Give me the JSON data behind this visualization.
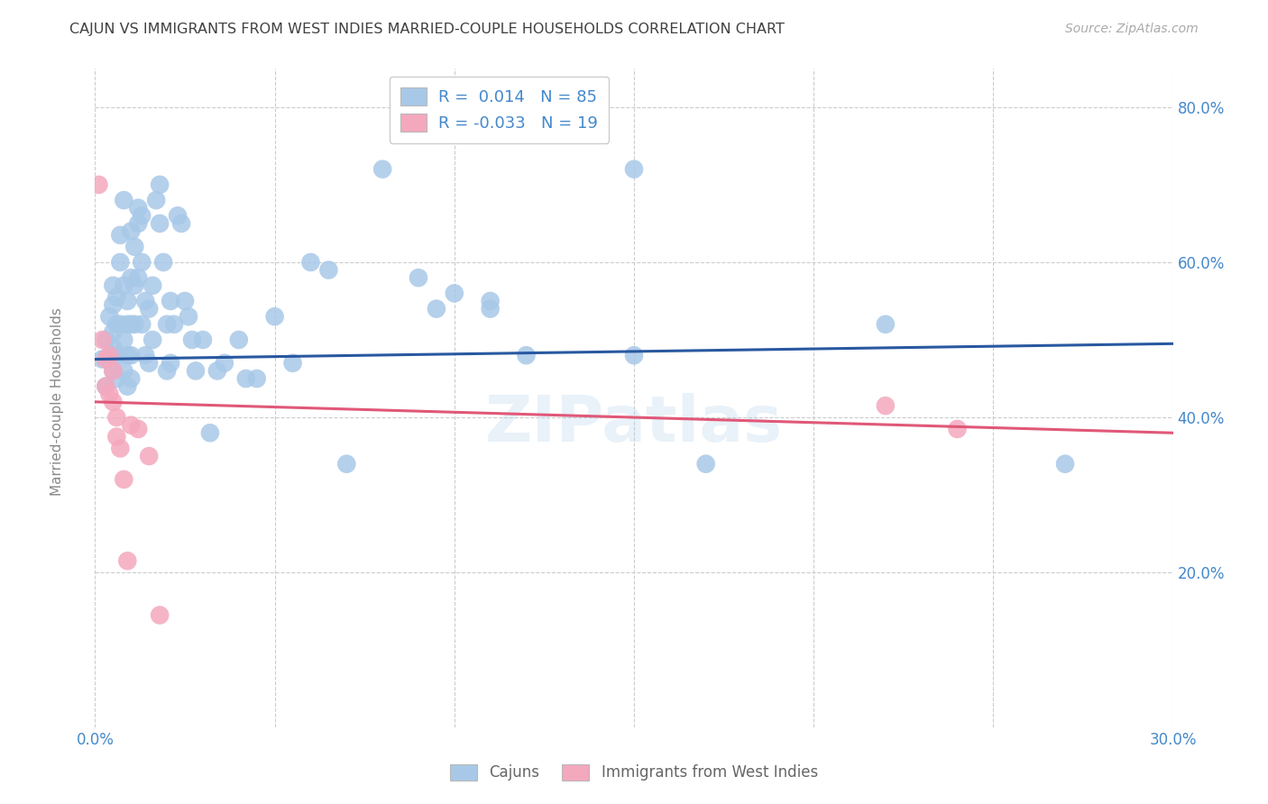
{
  "title": "CAJUN VS IMMIGRANTS FROM WEST INDIES MARRIED-COUPLE HOUSEHOLDS CORRELATION CHART",
  "source": "Source: ZipAtlas.com",
  "ylabel": "Married-couple Households",
  "xmin": 0.0,
  "xmax": 0.3,
  "ymin": 0.0,
  "ymax": 0.85,
  "yticks": [
    0.2,
    0.4,
    0.6,
    0.8
  ],
  "ytick_labels": [
    "20.0%",
    "40.0%",
    "60.0%",
    "80.0%"
  ],
  "xticks": [
    0.0,
    0.05,
    0.1,
    0.15,
    0.2,
    0.25,
    0.3
  ],
  "xtick_labels": [
    "0.0%",
    "",
    "",
    "",
    "",
    "",
    "30.0%"
  ],
  "cajun_R": "0.014",
  "cajun_N": "85",
  "west_indies_R": "-0.033",
  "west_indies_N": "19",
  "legend_labels": [
    "Cajuns",
    "Immigrants from West Indies"
  ],
  "blue_color": "#a8c8e8",
  "pink_color": "#f4a8be",
  "blue_line_color": "#2858a0",
  "pink_line_color": "#e05878",
  "grid_color": "#cccccc",
  "title_color": "#404040",
  "axis_color": "#4488cc",
  "watermark": "ZIPatlas",
  "cajun_x": [
    0.002,
    0.003,
    0.003,
    0.004,
    0.004,
    0.005,
    0.005,
    0.005,
    0.005,
    0.005,
    0.005,
    0.006,
    0.006,
    0.006,
    0.006,
    0.007,
    0.007,
    0.007,
    0.008,
    0.008,
    0.008,
    0.008,
    0.009,
    0.009,
    0.009,
    0.009,
    0.01,
    0.01,
    0.01,
    0.01,
    0.01,
    0.011,
    0.011,
    0.011,
    0.012,
    0.012,
    0.012,
    0.013,
    0.013,
    0.013,
    0.014,
    0.014,
    0.015,
    0.015,
    0.016,
    0.016,
    0.017,
    0.018,
    0.018,
    0.019,
    0.02,
    0.02,
    0.021,
    0.021,
    0.022,
    0.023,
    0.024,
    0.025,
    0.026,
    0.027,
    0.028,
    0.03,
    0.032,
    0.034,
    0.036,
    0.04,
    0.042,
    0.045,
    0.05,
    0.055,
    0.06,
    0.065,
    0.07,
    0.08,
    0.09,
    0.095,
    0.1,
    0.11,
    0.12,
    0.15,
    0.17,
    0.22,
    0.27,
    0.15,
    0.11
  ],
  "cajun_y": [
    0.475,
    0.5,
    0.44,
    0.53,
    0.48,
    0.545,
    0.51,
    0.46,
    0.49,
    0.57,
    0.48,
    0.555,
    0.52,
    0.48,
    0.45,
    0.635,
    0.6,
    0.52,
    0.68,
    0.57,
    0.5,
    0.46,
    0.55,
    0.52,
    0.48,
    0.44,
    0.64,
    0.58,
    0.52,
    0.48,
    0.45,
    0.62,
    0.57,
    0.52,
    0.67,
    0.65,
    0.58,
    0.66,
    0.6,
    0.52,
    0.55,
    0.48,
    0.54,
    0.47,
    0.57,
    0.5,
    0.68,
    0.7,
    0.65,
    0.6,
    0.52,
    0.46,
    0.55,
    0.47,
    0.52,
    0.66,
    0.65,
    0.55,
    0.53,
    0.5,
    0.46,
    0.5,
    0.38,
    0.46,
    0.47,
    0.5,
    0.45,
    0.45,
    0.53,
    0.47,
    0.6,
    0.59,
    0.34,
    0.72,
    0.58,
    0.54,
    0.56,
    0.55,
    0.48,
    0.72,
    0.34,
    0.52,
    0.34,
    0.48,
    0.54
  ],
  "west_indies_x": [
    0.001,
    0.002,
    0.003,
    0.003,
    0.004,
    0.004,
    0.005,
    0.005,
    0.006,
    0.006,
    0.007,
    0.008,
    0.009,
    0.01,
    0.012,
    0.015,
    0.018,
    0.22,
    0.24
  ],
  "west_indies_y": [
    0.7,
    0.5,
    0.475,
    0.44,
    0.48,
    0.43,
    0.46,
    0.42,
    0.4,
    0.375,
    0.36,
    0.32,
    0.215,
    0.39,
    0.385,
    0.35,
    0.145,
    0.415,
    0.385
  ],
  "blue_trend_x0": 0.0,
  "blue_trend_y0": 0.475,
  "blue_trend_x1": 0.3,
  "blue_trend_y1": 0.495,
  "pink_trend_x0": 0.0,
  "pink_trend_y0": 0.42,
  "pink_trend_x1": 0.3,
  "pink_trend_y1": 0.38
}
